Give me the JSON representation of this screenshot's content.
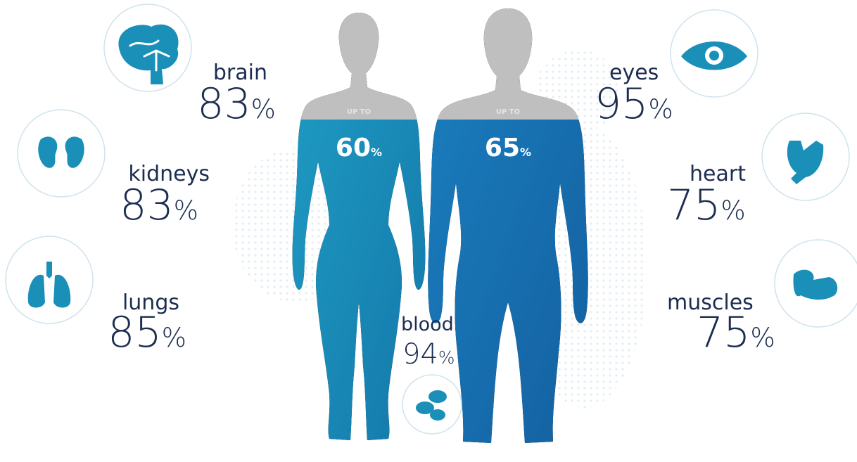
{
  "bodies": [
    {
      "label": "UP TO",
      "value": 60,
      "unit": "%"
    },
    {
      "label": "UP TO",
      "value": 65,
      "unit": "%"
    }
  ],
  "organs": [
    {
      "name": "brain",
      "value": 83,
      "unit": "%"
    },
    {
      "name": "kidneys",
      "value": 83,
      "unit": "%"
    },
    {
      "name": "lungs",
      "value": 85,
      "unit": "%"
    },
    {
      "name": "blood",
      "value": 94,
      "unit": "%"
    },
    {
      "name": "eyes",
      "value": 95,
      "unit": "%"
    },
    {
      "name": "heart",
      "value": 75,
      "unit": "%"
    },
    {
      "name": "muscles",
      "value": 75,
      "unit": "%"
    }
  ]
}
